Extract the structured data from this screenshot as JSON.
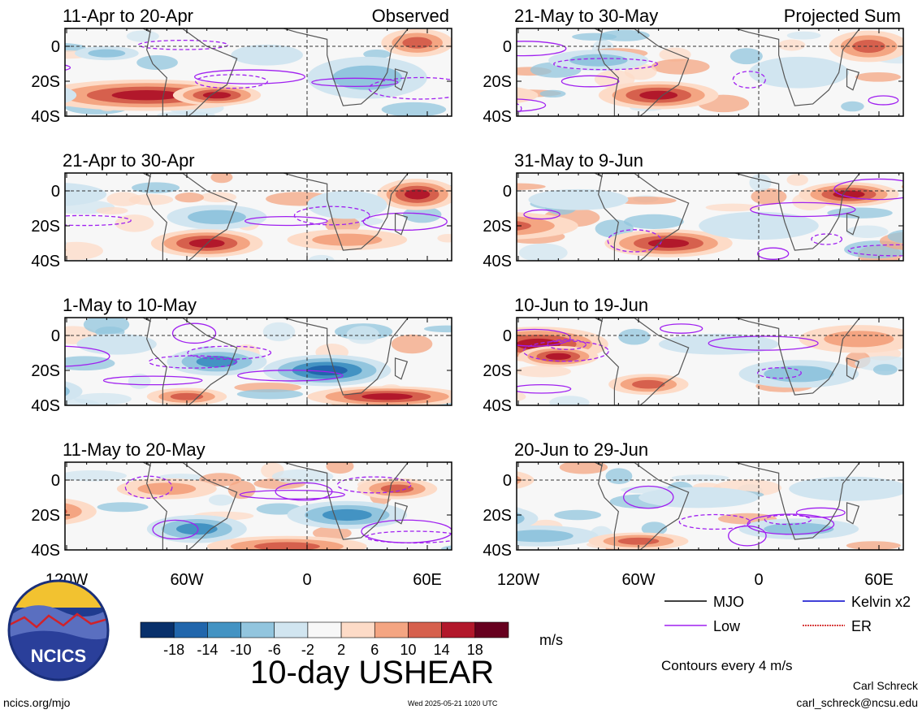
{
  "figure": {
    "title": "10-day USHEAR",
    "panel_left_tag": "Observed",
    "panel_right_tag": "Projected Sum",
    "footer_left": "ncics.org/mjo",
    "footer_date": "Wed 2025-05-21 1020 UTC",
    "footer_author": "Carl Schreck",
    "footer_email": "carl_schreck@ncsu.edu",
    "logo_text": "NCICS",
    "contour_note": "Contours every 4 m/s",
    "units": "m/s"
  },
  "legend": {
    "items": [
      {
        "label": "MJO",
        "color": "#000000",
        "dash": false
      },
      {
        "label": "Kelvin x2",
        "color": "#0000cc",
        "dash": false
      },
      {
        "label": "Low",
        "color": "#a020f0",
        "dash": false
      },
      {
        "label": "ER",
        "color": "#cc0000",
        "dash": true
      }
    ]
  },
  "colorbar": {
    "colors": [
      "#08306b",
      "#2166ac",
      "#4393c3",
      "#92c5de",
      "#d1e5f0",
      "#f7f7f7",
      "#fddbc7",
      "#f4a582",
      "#d6604d",
      "#b2182b",
      "#67001f"
    ],
    "tick_labels": [
      "-18",
      "-14",
      "-10",
      "-6",
      "-2",
      "2",
      "6",
      "10",
      "14",
      "18"
    ]
  },
  "chart_data": {
    "type": "heatmap",
    "variable": "10-day USHEAR",
    "units": "m/s",
    "x_ticks": [
      "120W",
      "60W",
      "0",
      "60E"
    ],
    "y_ticks": [
      "0",
      "20S",
      "40S"
    ],
    "panels": [
      {
        "period": "11-Apr to 20-Apr",
        "kind": "Observed",
        "column": "left",
        "row": 0
      },
      {
        "period": "21-Apr to 30-Apr",
        "kind": "Observed",
        "column": "left",
        "row": 1
      },
      {
        "period": "1-May to 10-May",
        "kind": "Observed",
        "column": "left",
        "row": 2
      },
      {
        "period": "11-May to 20-May",
        "kind": "Observed",
        "column": "left",
        "row": 3
      },
      {
        "period": "21-May to 30-May",
        "kind": "Projected Sum",
        "column": "right",
        "row": 0
      },
      {
        "period": "31-May to 9-Jun",
        "kind": "Projected Sum",
        "column": "right",
        "row": 1
      },
      {
        "period": "10-Jun to 19-Jun",
        "kind": "Projected Sum",
        "column": "right",
        "row": 2
      },
      {
        "period": "20-Jun to 29-Jun",
        "kind": "Projected Sum",
        "column": "right",
        "row": 3
      }
    ]
  }
}
